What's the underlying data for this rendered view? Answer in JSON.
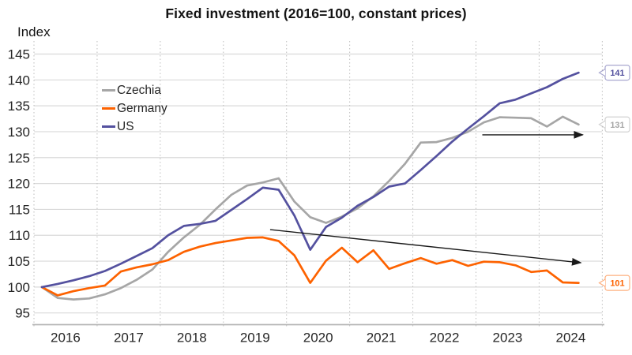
{
  "chart_data": {
    "type": "line",
    "title": "Fixed investment (2016=100, constant prices)",
    "y_axis": {
      "label": "Index",
      "ticks": [
        95,
        100,
        105,
        110,
        115,
        120,
        125,
        130,
        135,
        140,
        145
      ],
      "range": [
        93.3,
        147.5
      ],
      "gridlines": "solid-horizontal"
    },
    "x_axis": {
      "tick_labels": [
        "2016",
        "2017",
        "2018",
        "2019",
        "2020",
        "2021",
        "2022",
        "2023",
        "2024"
      ],
      "range": [
        2016,
        2025
      ],
      "gridlines": "dotted-vertical-yearly"
    },
    "x_start": 2016.125,
    "x_step": 0.25,
    "frequency": "quarterly",
    "legend_position": "upper-left-inside",
    "series": [
      {
        "name": "Czechia",
        "color": "#a6a6a6",
        "end_label": "131",
        "values": [
          100.0,
          97.9,
          97.6,
          97.8,
          98.6,
          99.8,
          101.4,
          103.4,
          106.8,
          109.6,
          112.0,
          115.0,
          117.8,
          119.6,
          120.2,
          121.0,
          116.5,
          113.5,
          112.4,
          113.6,
          115.2,
          117.5,
          120.5,
          123.8,
          127.9,
          128.0,
          128.8,
          130.0,
          131.8,
          132.8,
          132.7,
          132.6,
          131.0,
          132.9,
          131.4
        ]
      },
      {
        "name": "Germany",
        "color": "#fd6200",
        "end_label": "101",
        "values": [
          100.0,
          98.4,
          99.2,
          99.8,
          100.3,
          103.0,
          103.8,
          104.4,
          105.2,
          106.8,
          107.8,
          108.5,
          109.0,
          109.5,
          109.6,
          108.9,
          106.1,
          100.8,
          105.1,
          107.6,
          104.8,
          107.1,
          103.5,
          104.6,
          105.6,
          104.5,
          105.2,
          104.1,
          104.9,
          104.8,
          104.2,
          102.9,
          103.2,
          100.9,
          100.8
        ]
      },
      {
        "name": "US",
        "color": "#54519f",
        "end_label": "141",
        "values": [
          100.0,
          100.6,
          101.3,
          102.1,
          103.1,
          104.5,
          106.0,
          107.5,
          110.0,
          111.8,
          112.2,
          112.8,
          114.9,
          117.0,
          119.2,
          118.8,
          113.8,
          107.2,
          111.6,
          113.4,
          115.7,
          117.4,
          119.4,
          120.0,
          122.6,
          125.3,
          128.1,
          130.6,
          133.0,
          135.5,
          136.2,
          137.4,
          138.6,
          140.2,
          141.4
        ]
      }
    ],
    "annotations": [
      {
        "type": "arrow",
        "color": "#1a1a1a",
        "from": {
          "x": 2019.74,
          "y": 111.1
        },
        "to": {
          "x": 2024.66,
          "y": 104.7
        }
      },
      {
        "type": "arrow",
        "color": "#1a1a1a",
        "from": {
          "x": 2023.1,
          "y": 129.4
        },
        "to": {
          "x": 2024.69,
          "y": 129.4
        }
      }
    ],
    "colors": {
      "grid": "#d9d9d9",
      "grid_dotted": "#bdbdbd",
      "axis_line": "#b7b7b7",
      "tick_text": "#262626"
    }
  }
}
